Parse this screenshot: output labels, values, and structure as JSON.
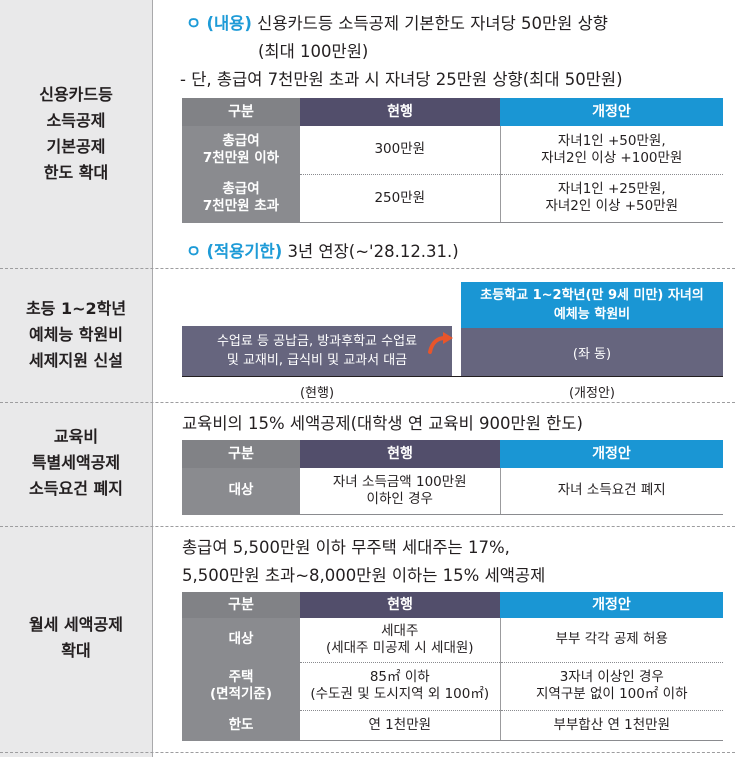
{
  "sections": [
    {
      "label": [
        "신용카드등",
        "소득공제",
        "기본공제",
        "한도 확대"
      ]
    },
    {
      "label": [
        "초등 1~2학년",
        "예체능 학원비",
        "세제지원 신설"
      ]
    },
    {
      "label": [
        "교육비",
        "특별세액공제",
        "소득요건 폐지"
      ]
    },
    {
      "label": [
        "월세 세액공제",
        "확대"
      ]
    }
  ],
  "s1": {
    "bullet": "ㅇ",
    "content_tag": "(내용)",
    "content_line1": " 신용카드등 소득공제 기본한도 자녀당 50만원 상향",
    "content_line2": "(최대 100만원)",
    "note": "- 단, 총급여 7천만원 초과 시 자녀당 25만원 상향(최대 50만원)",
    "headers": [
      "구분",
      "현행",
      "개정안"
    ],
    "rows": [
      {
        "label": [
          "총급여",
          "7천만원 이하"
        ],
        "current": "300만원",
        "revised": [
          "자녀1인 +50만원,",
          "자녀2인 이상 +100만원"
        ]
      },
      {
        "label": [
          "총급여",
          "7천만원 초과"
        ],
        "current": "250만원",
        "revised": [
          "자녀1인 +25만원,",
          "자녀2인 이상 +50만원"
        ]
      }
    ],
    "period_tag": "(적용기한)",
    "period_text": " 3년 연장(~'28.12.31.)"
  },
  "s2": {
    "old_lines": [
      "수업료 등 공납금, 방과후학교 수업료",
      "및 교재비, 급식비 및 교과서 대금"
    ],
    "new_header": [
      "초등학교 1~2학년(만 9세 미만) 자녀의",
      "예체능 학원비"
    ],
    "new_body": "(좌 동)",
    "caption_old": "(현행)",
    "caption_new": "(개정안)",
    "accent_color": "#e8552b"
  },
  "s3": {
    "intro": "교육비의 15% 세액공제(대학생 연 교육비 900만원 한도)",
    "headers": [
      "구분",
      "현행",
      "개정안"
    ],
    "rows": [
      {
        "label": [
          "대상"
        ],
        "current": [
          "자녀 소득금액 100만원",
          "이하인 경우"
        ],
        "revised": [
          "자녀 소득요건 폐지"
        ]
      }
    ]
  },
  "s4": {
    "intro1": "총급여 5,500만원 이하 무주택 세대주는 17%,",
    "intro2": "5,500만원 초과~8,000만원 이하는 15% 세액공제",
    "headers": [
      "구분",
      "현행",
      "개정안"
    ],
    "rows": [
      {
        "label": [
          "대상"
        ],
        "current": [
          "세대주",
          "(세대주 미공제 시 세대원)"
        ],
        "revised": [
          "부부 각각 공제 허용"
        ]
      },
      {
        "label": [
          "주택",
          "(면적기준)"
        ],
        "current": [
          "85㎡ 이하",
          "(수도권 및 도시지역 외 100㎡)"
        ],
        "revised": [
          "3자녀 이상인 경우",
          "지역구분 없이 100㎡ 이하"
        ]
      },
      {
        "label": [
          "한도"
        ],
        "current": [
          "연 1천만원"
        ],
        "revised": [
          "부부합산 연 1천만원"
        ]
      }
    ]
  },
  "colors": {
    "accent_blue": "#1e9bd7",
    "header_navy": "#524e6b",
    "header_blue": "#1a96d4",
    "label_gray": "#8a8b8f"
  }
}
